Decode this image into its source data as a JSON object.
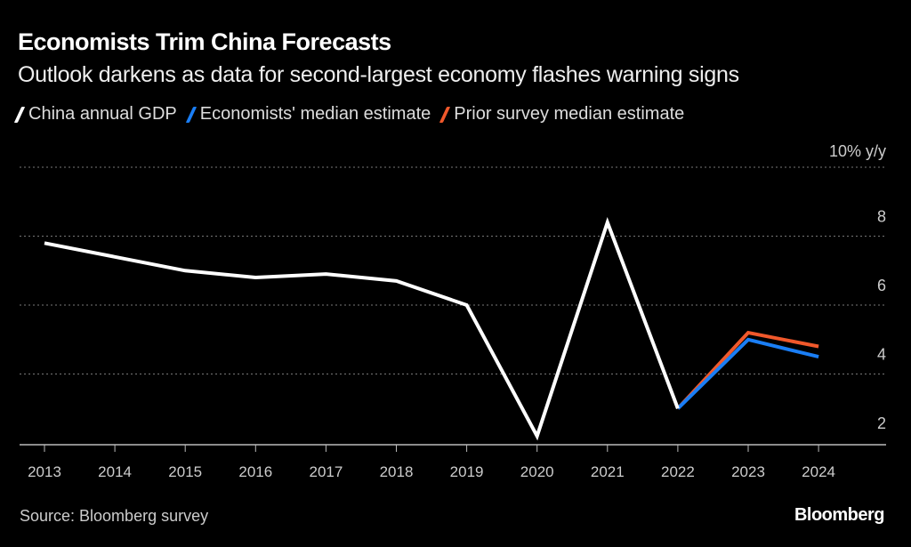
{
  "header": {
    "title": "Economists Trim China Forecasts",
    "subtitle": "Outlook darkens as data for second-largest economy flashes warning signs"
  },
  "footer": {
    "source": "Source: Bloomberg survey",
    "brand": "Bloomberg"
  },
  "chart_data": {
    "type": "line",
    "title": "Economists Trim China Forecasts",
    "subtitle": "Outlook darkens as data for second-largest economy flashes warning signs",
    "xlabel": "",
    "ylabel": "% y/y",
    "x": [
      "2013",
      "2014",
      "2015",
      "2016",
      "2017",
      "2018",
      "2019",
      "2020",
      "2021",
      "2022",
      "2023",
      "2024"
    ],
    "y_ticks": [
      2,
      4,
      6,
      8,
      10
    ],
    "y_tick_labels": [
      "2",
      "4",
      "6",
      "8",
      "10% y/y"
    ],
    "ylim": [
      2,
      10
    ],
    "grid": true,
    "legend_position": "top-left",
    "series": [
      {
        "name": "China annual GDP",
        "color": "#ffffff",
        "x": [
          "2013",
          "2014",
          "2015",
          "2016",
          "2017",
          "2018",
          "2019",
          "2020",
          "2021",
          "2022"
        ],
        "values": [
          7.8,
          7.4,
          7.0,
          6.8,
          6.9,
          6.7,
          6.0,
          2.2,
          8.4,
          3.0
        ]
      },
      {
        "name": "Economists' median estimate",
        "color": "#1a7ef5",
        "x": [
          "2022",
          "2023",
          "2024"
        ],
        "values": [
          3.0,
          5.0,
          4.5
        ]
      },
      {
        "name": "Prior survey median estimate",
        "color": "#f0582b",
        "x": [
          "2022",
          "2023",
          "2024"
        ],
        "values": [
          3.0,
          5.2,
          4.8
        ]
      }
    ]
  }
}
